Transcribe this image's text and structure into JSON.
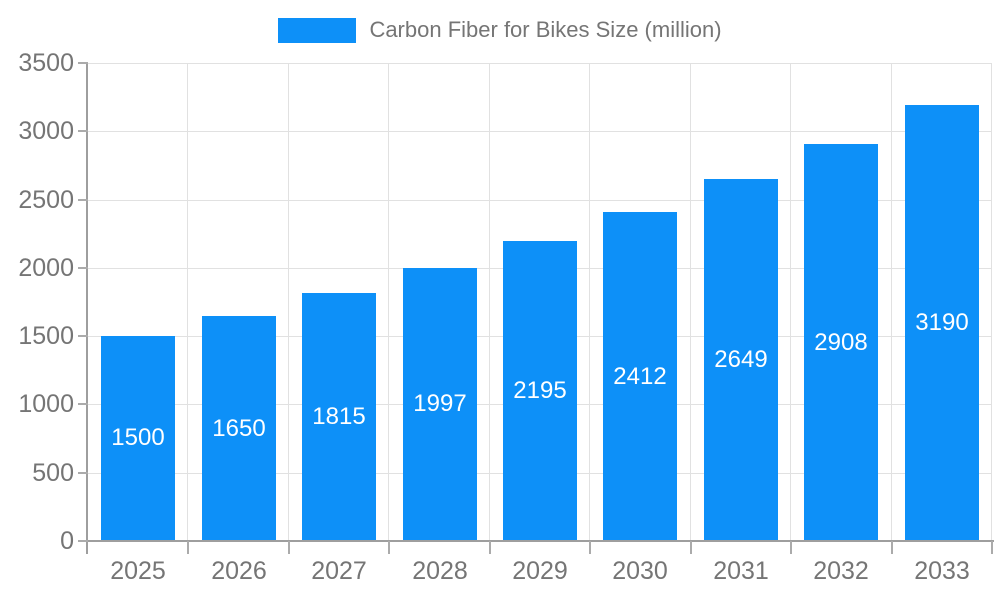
{
  "legend": {
    "label": "Carbon Fiber for Bikes Size (million)",
    "position": "top-center"
  },
  "colors": {
    "bar": "#0D90F8",
    "grid": "#E1E1E1",
    "axis": "#9E9E9E",
    "tick": "#ABABAB",
    "text": "#757575",
    "bar_label": "#FFFFFF",
    "background": "#FFFFFF"
  },
  "chart_data": {
    "type": "bar",
    "title": "Carbon Fiber for Bikes Size (million)",
    "series_name": "Carbon Fiber for Bikes Size (million)",
    "categories": [
      "2025",
      "2026",
      "2027",
      "2028",
      "2029",
      "2030",
      "2031",
      "2032",
      "2033"
    ],
    "values": [
      1500,
      1650,
      1815,
      1997,
      2195,
      2412,
      2649,
      2908,
      3190
    ],
    "xlabel": "",
    "ylabel": "",
    "ylim": [
      0,
      3500
    ],
    "yticks": [
      0,
      500,
      1000,
      1500,
      2000,
      2500,
      3000,
      3500
    ],
    "grid": true,
    "legend_position": "top-center",
    "value_labels": "inside-center-white"
  }
}
